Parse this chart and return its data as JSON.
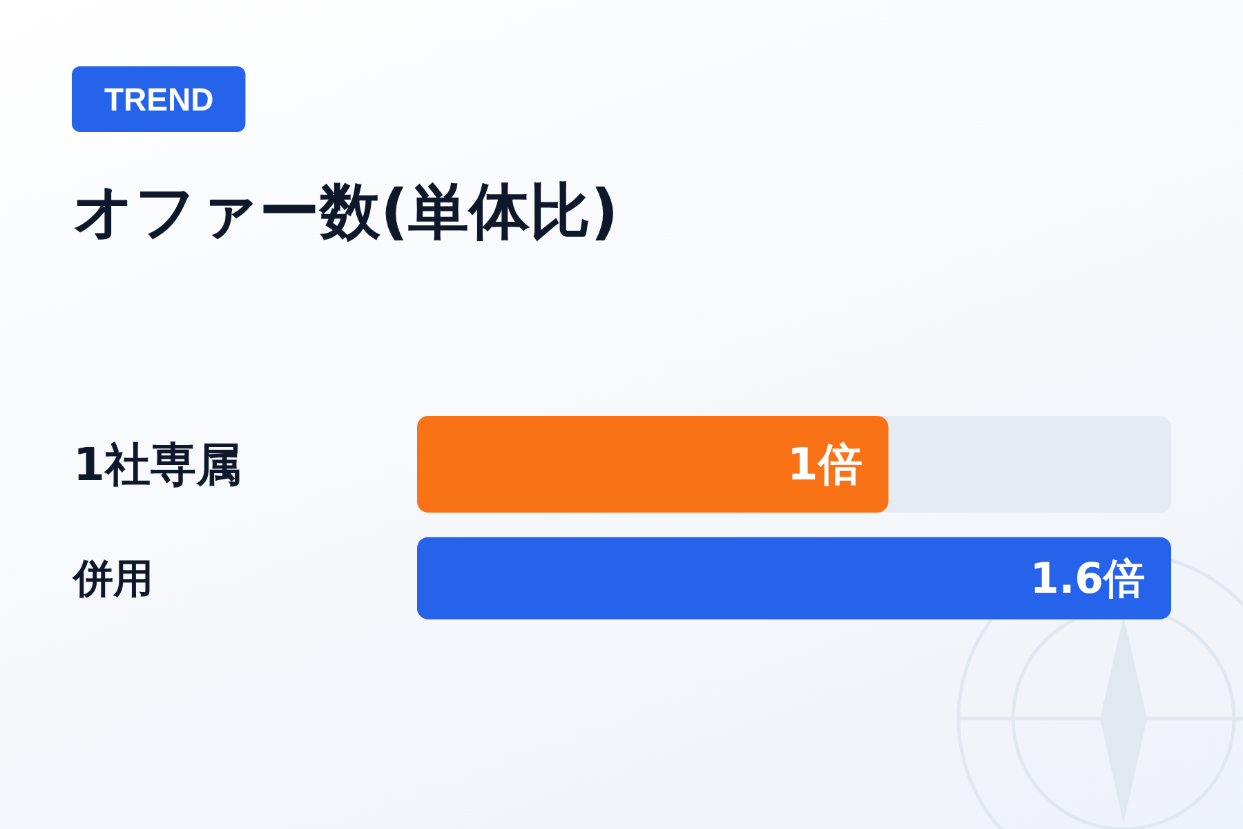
{
  "chart_data": {
    "type": "bar",
    "orientation": "horizontal",
    "title": "オファー数(単体比)",
    "annotations": [
      "TREND"
    ],
    "categories": [
      "1社専属",
      "併用"
    ],
    "values": [
      1,
      1.6
    ],
    "colors": [
      "#f97316",
      "#2563eb"
    ],
    "value_labels": [
      "1倍",
      "1.6倍"
    ]
  }
}
